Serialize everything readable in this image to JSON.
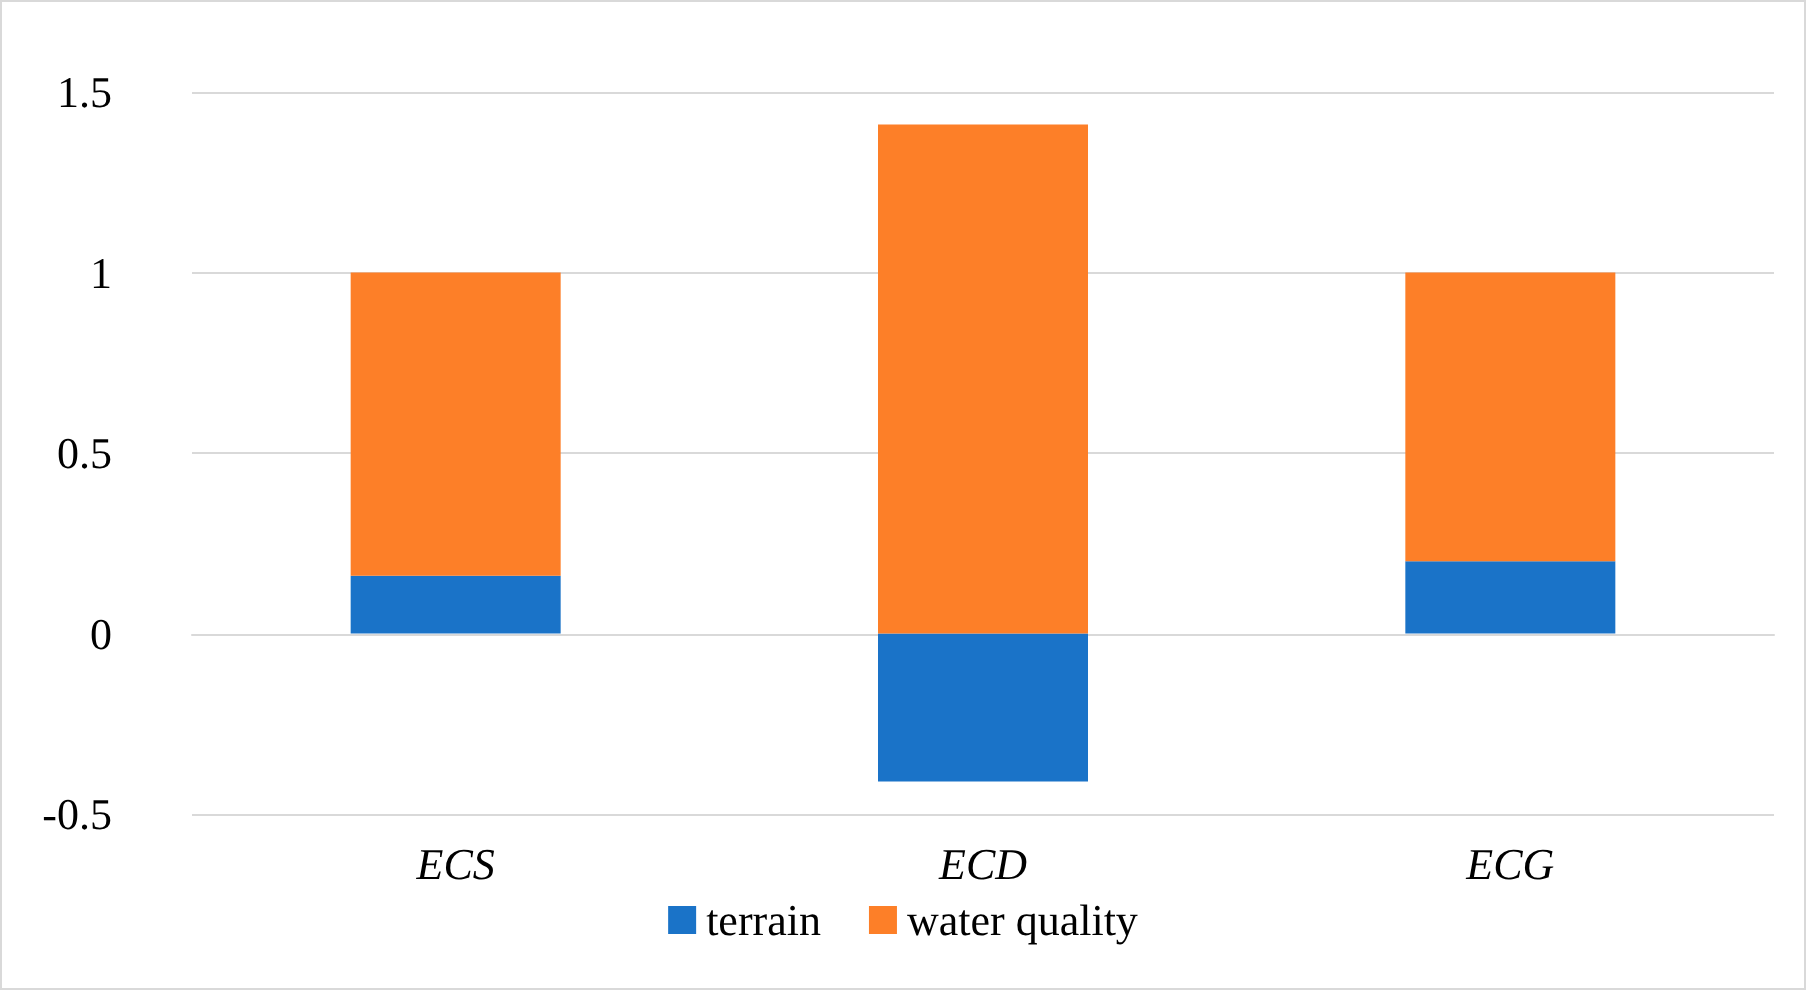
{
  "chart_data": {
    "type": "bar",
    "stacked": true,
    "categories": [
      "ECS",
      "ECD",
      "ECG"
    ],
    "series": [
      {
        "name": "terrain",
        "color": "#1a73c8",
        "values": [
          0.16,
          -0.41,
          0.2
        ]
      },
      {
        "name": "water quality",
        "color": "#fd7f28",
        "values": [
          0.84,
          1.41,
          0.8
        ]
      }
    ],
    "ylim": [
      -0.5,
      1.5
    ],
    "yticks": [
      -0.5,
      0,
      0.5,
      1,
      1.5
    ],
    "grid": "y",
    "legend": "bottom"
  }
}
